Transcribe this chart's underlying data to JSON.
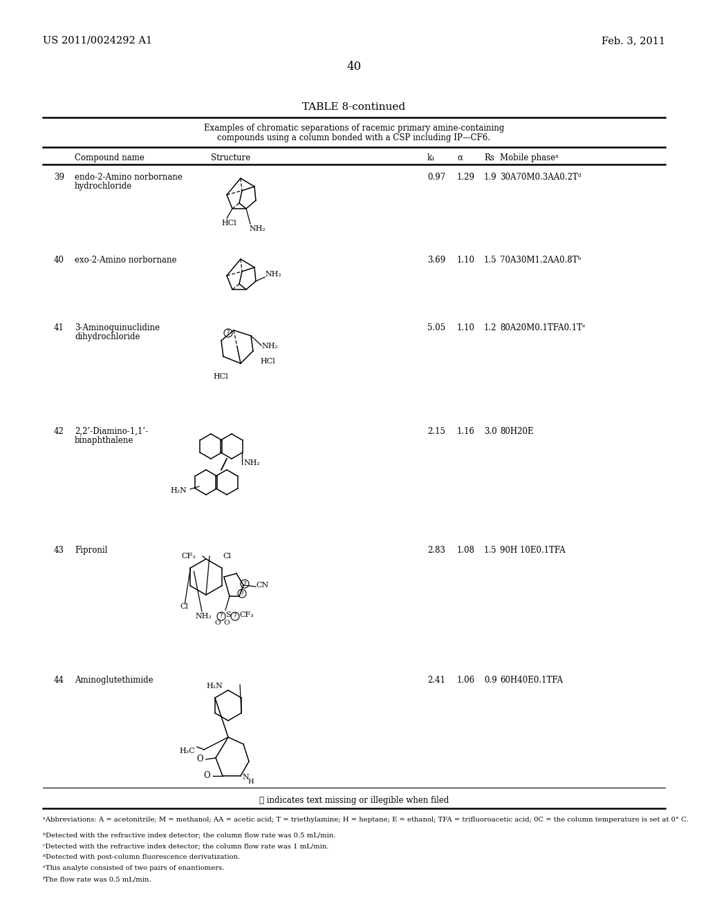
{
  "page_header_left": "US 2011/0024292 A1",
  "page_header_right": "Feb. 3, 2011",
  "page_number": "40",
  "table_title": "TABLE 8-continued",
  "table_caption_line1": "Examples of chromatic separations of racemic primary amine-containing",
  "table_caption_line2": "compounds using a column bonded with a CSP including IP—CF6.",
  "col_header_compound": "Compound name",
  "col_header_structure": "Structure",
  "col_header_k1": "k₁",
  "col_header_alpha": "α",
  "col_header_rs": "Rs",
  "col_header_mobile": "Mobile phaseᵃ",
  "rows": [
    {
      "num": "39",
      "name_line1": "endo-2-Amino norbornane",
      "name_line2": "hydrochloride",
      "k1": "0.97",
      "alpha": "1.29",
      "rs": "1.9",
      "mobile": "30A70M0.3AA0.2Tᵈ"
    },
    {
      "num": "40",
      "name_line1": "exo-2-Amino norbornane",
      "name_line2": "",
      "k1": "3.69",
      "alpha": "1.10",
      "rs": "1.5",
      "mobile": "70A30M1.2AA0.8Tᵇ"
    },
    {
      "num": "41",
      "name_line1": "3-Aminoquinuclidine",
      "name_line2": "dihydrochloride",
      "k1": "5.05",
      "alpha": "1.10",
      "rs": "1.2",
      "mobile": "80A20M0.1TFA0.1Tᵉ"
    },
    {
      "num": "42",
      "name_line1": "2,2’-Diamino-1,1’-",
      "name_line2": "binaphthalene",
      "k1": "2.15",
      "alpha": "1.16",
      "rs": "3.0",
      "mobile": "80H20E"
    },
    {
      "num": "43",
      "name_line1": "Fipronil",
      "name_line2": "",
      "k1": "2.83",
      "alpha": "1.08",
      "rs": "1.5",
      "mobile": "90H 10E0.1TFA"
    },
    {
      "num": "44",
      "name_line1": "Aminoglutethimide",
      "name_line2": "",
      "k1": "2.41",
      "alpha": "1.06",
      "rs": "0.9",
      "mobile": "60H40E0.1TFA"
    }
  ],
  "footnotes": [
    "ᵃAbbreviations: A = acetonitrile; M = methanol; AA = acetic acid; T = triethylamine; H = heptane; E = ethanol; TFA = trifluoroacetic acid; 0C = the column temperature is set at 0° C.",
    "ᵇDetected with the refractive index detector; the column flow rate was 0.5 mL/min.",
    "ᶜDetected with the refractive index detector; the column flow rate was 1 mL/min.",
    "ᵈDetected with post-column fluorescence derivatization.",
    "ᵉThis analyte consisted of two pairs of enantiomers.",
    "ᶠThe flow rate was 0.5 mL/min."
  ],
  "watermark_text": "ⓘ indicates text missing or illegible when filed",
  "bg_color": "#ffffff",
  "text_color": "#000000"
}
